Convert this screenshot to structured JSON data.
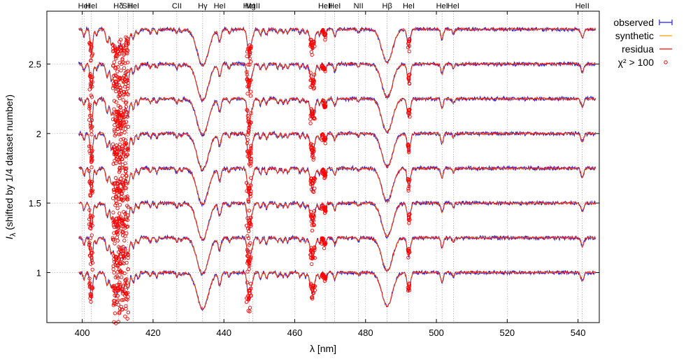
{
  "chart_data": {
    "type": "line",
    "xlabel": "λ [nm]",
    "ylabel_prefix": "I",
    "ylabel_sub": "λ",
    "ylabel_rest": " (shifted by 1/4 dataset number)",
    "xlim": [
      390,
      546
    ],
    "ylim": [
      0.64,
      2.88
    ],
    "xticks": [
      400,
      420,
      440,
      460,
      480,
      500,
      520,
      540
    ],
    "yticks": [
      1,
      1.5,
      2,
      2.5
    ],
    "grid": true,
    "legend_position": "outside-right",
    "offsets": [
      1.0,
      1.25,
      1.5,
      1.75,
      2.0,
      2.25,
      2.5,
      2.75
    ],
    "wavelength_range": [
      399,
      545
    ],
    "series": [
      {
        "name": "observed",
        "color": "#1f1fe0"
      },
      {
        "name": "synthetic",
        "color": "#f0a000"
      },
      {
        "name": "residua",
        "color": "#ff0000"
      },
      {
        "name": "χ² > 100",
        "color": "#ff0000",
        "marker": "circle"
      }
    ],
    "lines": [
      {
        "label": "HeI",
        "x": 400.5
      },
      {
        "label": "HeI",
        "x": 402.6
      },
      {
        "label": "Hδ",
        "x": 410.2
      },
      {
        "label": "SiII",
        "x": 412.8
      },
      {
        "label": "HeI",
        "x": 414.4
      },
      {
        "label": "CII",
        "x": 426.7
      },
      {
        "label": "Hγ",
        "x": 434.0
      },
      {
        "label": "HeI",
        "x": 438.8
      },
      {
        "label": "HeI",
        "x": 447.1
      },
      {
        "label": "MgII",
        "x": 448.1
      },
      {
        "label": "HeII",
        "x": 468.6
      },
      {
        "label": "HeI",
        "x": 471.3
      },
      {
        "label": "NII",
        "x": 478.0
      },
      {
        "label": "Hβ",
        "x": 486.1
      },
      {
        "label": "HeI",
        "x": 492.2
      },
      {
        "label": "HeI",
        "x": 501.6
      },
      {
        "label": "HeI",
        "x": 504.8
      },
      {
        "label": "HeII",
        "x": 541.2
      }
    ],
    "absorption_features": [
      {
        "x": 400.5,
        "depth": 0.05,
        "width": 0.3
      },
      {
        "x": 402.6,
        "depth": 0.18,
        "width": 0.35
      },
      {
        "x": 404.0,
        "depth": 0.04,
        "width": 0.3
      },
      {
        "x": 407.0,
        "depth": 0.08,
        "width": 0.35
      },
      {
        "x": 408.2,
        "depth": 0.06,
        "width": 0.3
      },
      {
        "x": 409.4,
        "depth": 0.07,
        "width": 0.35
      },
      {
        "x": 410.2,
        "depth": 0.12,
        "width": 1.6
      },
      {
        "x": 411.6,
        "depth": 0.06,
        "width": 0.3
      },
      {
        "x": 412.8,
        "depth": 0.06,
        "width": 0.3
      },
      {
        "x": 413.2,
        "depth": 0.05,
        "width": 0.3
      },
      {
        "x": 414.4,
        "depth": 0.07,
        "width": 0.35
      },
      {
        "x": 415.8,
        "depth": 0.04,
        "width": 0.3
      },
      {
        "x": 419.2,
        "depth": 0.03,
        "width": 0.3
      },
      {
        "x": 421.0,
        "depth": 0.03,
        "width": 0.3
      },
      {
        "x": 426.7,
        "depth": 0.03,
        "width": 0.3
      },
      {
        "x": 428.0,
        "depth": 0.02,
        "width": 0.3
      },
      {
        "x": 434.0,
        "depth": 0.26,
        "width": 1.6
      },
      {
        "x": 438.8,
        "depth": 0.09,
        "width": 0.4
      },
      {
        "x": 441.5,
        "depth": 0.03,
        "width": 0.3
      },
      {
        "x": 447.1,
        "depth": 0.2,
        "width": 0.45
      },
      {
        "x": 448.1,
        "depth": 0.05,
        "width": 0.3
      },
      {
        "x": 450.3,
        "depth": 0.04,
        "width": 0.3
      },
      {
        "x": 452.0,
        "depth": 0.04,
        "width": 0.3
      },
      {
        "x": 455.2,
        "depth": 0.03,
        "width": 0.3
      },
      {
        "x": 456.7,
        "depth": 0.03,
        "width": 0.3
      },
      {
        "x": 458.0,
        "depth": 0.03,
        "width": 0.3
      },
      {
        "x": 461.5,
        "depth": 0.03,
        "width": 0.3
      },
      {
        "x": 463.0,
        "depth": 0.03,
        "width": 0.3
      },
      {
        "x": 465.0,
        "depth": 0.14,
        "width": 0.6
      },
      {
        "x": 467.0,
        "depth": 0.04,
        "width": 0.3
      },
      {
        "x": 468.6,
        "depth": 0.05,
        "width": 0.3
      },
      {
        "x": 471.3,
        "depth": 0.05,
        "width": 0.35
      },
      {
        "x": 478.0,
        "depth": 0.02,
        "width": 0.3
      },
      {
        "x": 486.1,
        "depth": 0.24,
        "width": 1.5
      },
      {
        "x": 492.2,
        "depth": 0.13,
        "width": 0.45
      },
      {
        "x": 501.6,
        "depth": 0.07,
        "width": 0.35
      },
      {
        "x": 504.8,
        "depth": 0.03,
        "width": 0.3
      },
      {
        "x": 541.2,
        "depth": 0.06,
        "width": 0.4
      }
    ],
    "outlier_regions": [
      {
        "x0": 401.9,
        "x1": 402.9,
        "depth": 0.2
      },
      {
        "x0": 408.6,
        "x1": 413.0,
        "depth": 0.32
      },
      {
        "x0": 446.4,
        "x1": 447.7,
        "depth": 0.22
      },
      {
        "x0": 464.4,
        "x1": 465.7,
        "depth": 0.15
      },
      {
        "x0": 467.6,
        "x1": 468.8,
        "depth": 0.06
      },
      {
        "x0": 491.9,
        "x1": 492.5,
        "depth": 0.1
      }
    ]
  }
}
